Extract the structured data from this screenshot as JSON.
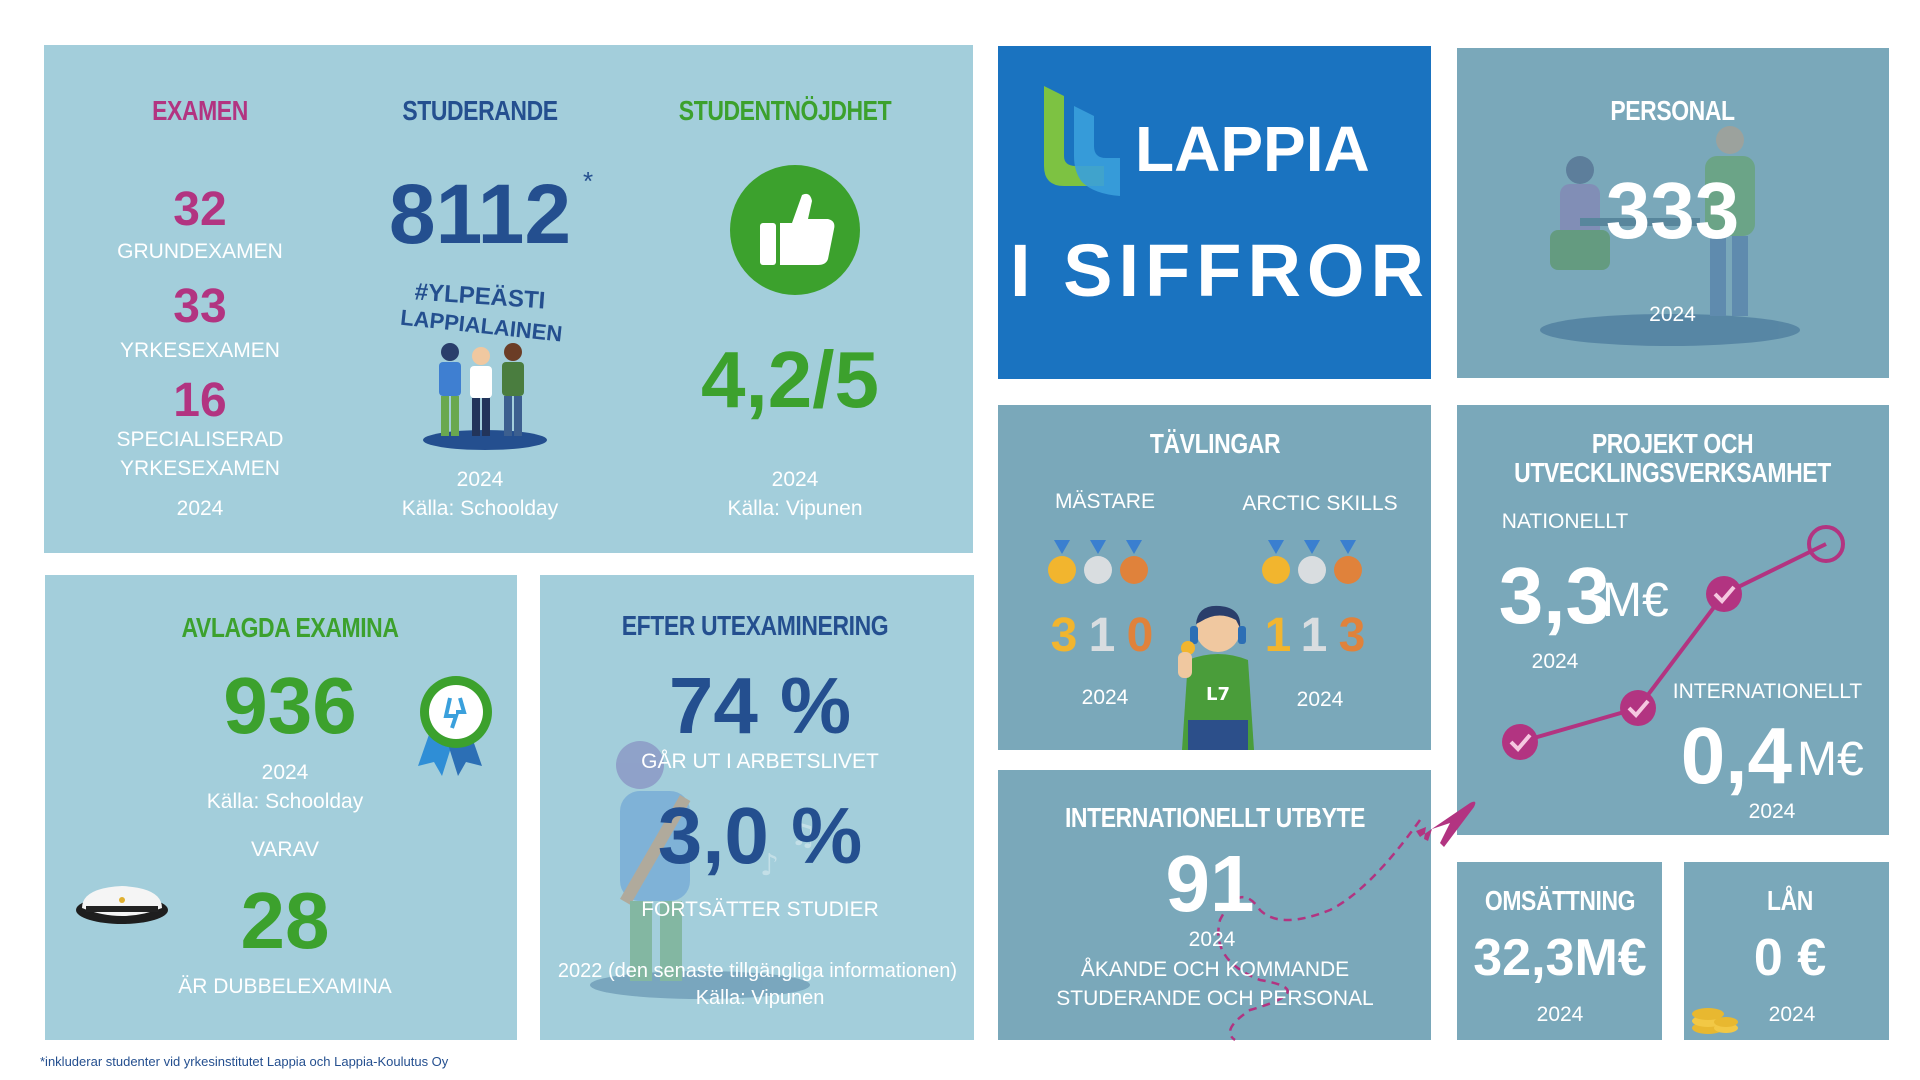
{
  "examen": {
    "title": "EXAMEN",
    "items": [
      {
        "value": "32",
        "label": "GRUNDEXAMEN"
      },
      {
        "value": "33",
        "label": "YRKESEXAMEN"
      },
      {
        "value": "16",
        "label_line1": "SPECIALISERAD",
        "label_line2": "YRKESEXAMEN"
      }
    ],
    "year": "2024"
  },
  "studerande": {
    "title": "STUDERANDE",
    "value": "8112",
    "asterisk": "*",
    "hashtag_line1": "#YLPEÄSTI",
    "hashtag_line2": "LAPPIALAINEN",
    "year": "2024",
    "source": "Källa: Schoolday"
  },
  "nojdhet": {
    "title": "STUDENTNÖJDHET",
    "value": "4,2/5",
    "year": "2024",
    "source": "Källa: Vipunen"
  },
  "brand": {
    "logo_text": "LAPPIA",
    "subtitle": "I SIFFROR"
  },
  "personal": {
    "title": "PERSONAL",
    "value": "333",
    "year": "2024"
  },
  "avlagda": {
    "title": "AVLAGDA EXAMINA",
    "value": "936",
    "year": "2024",
    "source": "Källa: Schoolday",
    "varav_label": "VARAV",
    "double_value": "28",
    "double_label": "ÄR DUBBELEXAMINA"
  },
  "efter": {
    "title": "EFTER UTEXAMINERING",
    "work_value": "74 %",
    "work_label": "GÅR UT I ARBETSLIVET",
    "study_value": "3,0 %",
    "study_label": "FORTSÄTTER STUDIER",
    "year_note": "2022 (den senaste tillgängliga informationen)",
    "source": "Källa: Vipunen"
  },
  "tavlingar": {
    "title": "TÄVLINGAR",
    "mastare": {
      "label": "MÄSTARE",
      "gold": "3",
      "silver": "1",
      "bronze": "0",
      "year": "2024"
    },
    "arctic": {
      "label": "ARCTIC SKILLS",
      "gold": "1",
      "silver": "1",
      "bronze": "3",
      "year": "2024"
    }
  },
  "projekt": {
    "title_line1": "PROJEKT OCH",
    "title_line2": "UTVECKLINGSVERKSAMHET",
    "national_label": "NATIONELLT",
    "national_value": "3,3",
    "national_unit": "M€",
    "national_year": "2024",
    "international_label": "INTERNATIONELLT",
    "international_value": "0,4",
    "international_unit": "M€",
    "international_year": "2024"
  },
  "utbyte": {
    "title": "INTERNATIONELLT UTBYTE",
    "value": "91",
    "year": "2024",
    "label_line1": "ÅKANDE OCH KOMMANDE",
    "label_line2": "STUDERANDE OCH PERSONAL"
  },
  "omsattning": {
    "title": "OMSÄTTNING",
    "value": "32,3M€",
    "year": "2024"
  },
  "lan": {
    "title": "LÅN",
    "value": "0 €",
    "year": "2024"
  },
  "footnote": "*inkluderar studenter vid yrkesinstitutet Lappia och Lappia-Koulutus Oy",
  "colors": {
    "light_panel": "#a3cedb",
    "gray_panel": "#7aa8ba",
    "brand_blue": "#1a73c0",
    "green": "#3ca12d",
    "navy": "#244f8f",
    "magenta": "#b23481",
    "gold": "#f2b52e",
    "silver": "#d9dde0",
    "bronze": "#e0823b"
  }
}
